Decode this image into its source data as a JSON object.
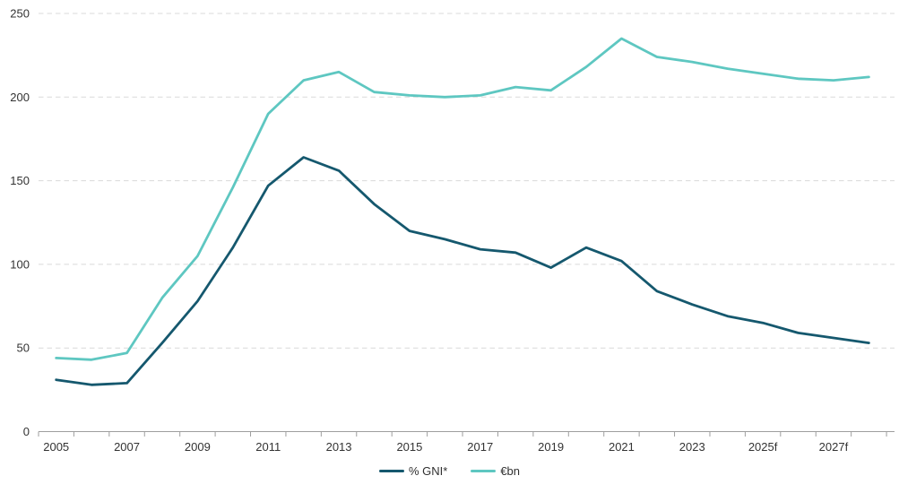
{
  "chart_data": {
    "type": "line",
    "title": "",
    "x": [
      2005,
      2006,
      2007,
      2008,
      2009,
      2010,
      2011,
      2012,
      2013,
      2014,
      2015,
      2016,
      2017,
      2018,
      2019,
      2020,
      2021,
      2022,
      2023,
      2024,
      2025,
      2026,
      2027,
      2028
    ],
    "xtick_labels": [
      "2005",
      "2007",
      "2009",
      "2011",
      "2013",
      "2015",
      "2017",
      "2019",
      "2021",
      "2023",
      "2025f",
      "2027f"
    ],
    "yticks": [
      0,
      50,
      100,
      150,
      200,
      250
    ],
    "ylim": [
      0,
      250
    ],
    "grid": "horizontal-dashed",
    "legend_position": "bottom-center",
    "series": [
      {
        "name": "% GNI*",
        "color": "#15586e",
        "values": [
          31,
          28,
          29,
          53,
          78,
          110,
          147,
          164,
          156,
          136,
          120,
          115,
          109,
          107,
          98,
          110,
          102,
          84,
          76,
          69,
          65,
          59,
          56,
          53
        ]
      },
      {
        "name": "€bn",
        "color": "#5ec7c1",
        "values": [
          44,
          43,
          47,
          80,
          105,
          146,
          190,
          210,
          215,
          203,
          201,
          200,
          201,
          206,
          204,
          218,
          235,
          224,
          221,
          217,
          214,
          211,
          210,
          212
        ]
      }
    ]
  },
  "colors": {
    "gridline": "#d9d9d9",
    "axis": "#9e9e9e",
    "tick_text": "#333333",
    "background": "#ffffff"
  }
}
